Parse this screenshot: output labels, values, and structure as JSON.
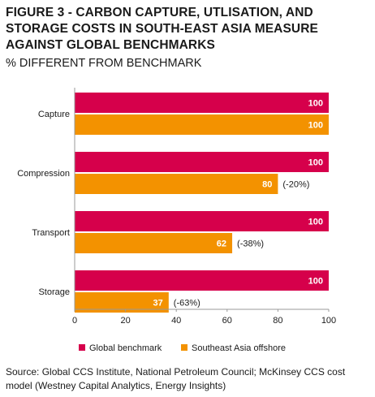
{
  "title": "FIGURE 3 - CARBON CAPTURE, UTLISATION, AND STORAGE COSTS IN SOUTH-EAST ASIA MEASURE AGAINST GLOBAL BENCHMARKS",
  "subtitle": "% DIFFERENT FROM BENCHMARK",
  "source": "Source: Global CCS Institute, National Petroleum Council; McKinsey CCS cost model (Westney Capital Analytics, Energy Insights)",
  "colors": {
    "global": "#d6004b",
    "sea": "#f39200",
    "axis": "#999999"
  },
  "chart_data": {
    "type": "bar",
    "orientation": "horizontal",
    "categories": [
      "Capture",
      "Compression",
      "Transport",
      "Storage"
    ],
    "series": [
      {
        "name": "Global benchmark",
        "values": [
          100,
          100,
          100,
          100
        ]
      },
      {
        "name": "Southeast Asia offshore",
        "values": [
          100,
          80,
          62,
          37
        ]
      }
    ],
    "annotations": [
      "",
      "(-20%)",
      "(-38%)",
      "(-63%)"
    ],
    "xticks": [
      "0",
      "20",
      "40",
      "60",
      "80",
      "100"
    ],
    "xlim": [
      0,
      100
    ],
    "legend": "bottom",
    "grid": false
  }
}
